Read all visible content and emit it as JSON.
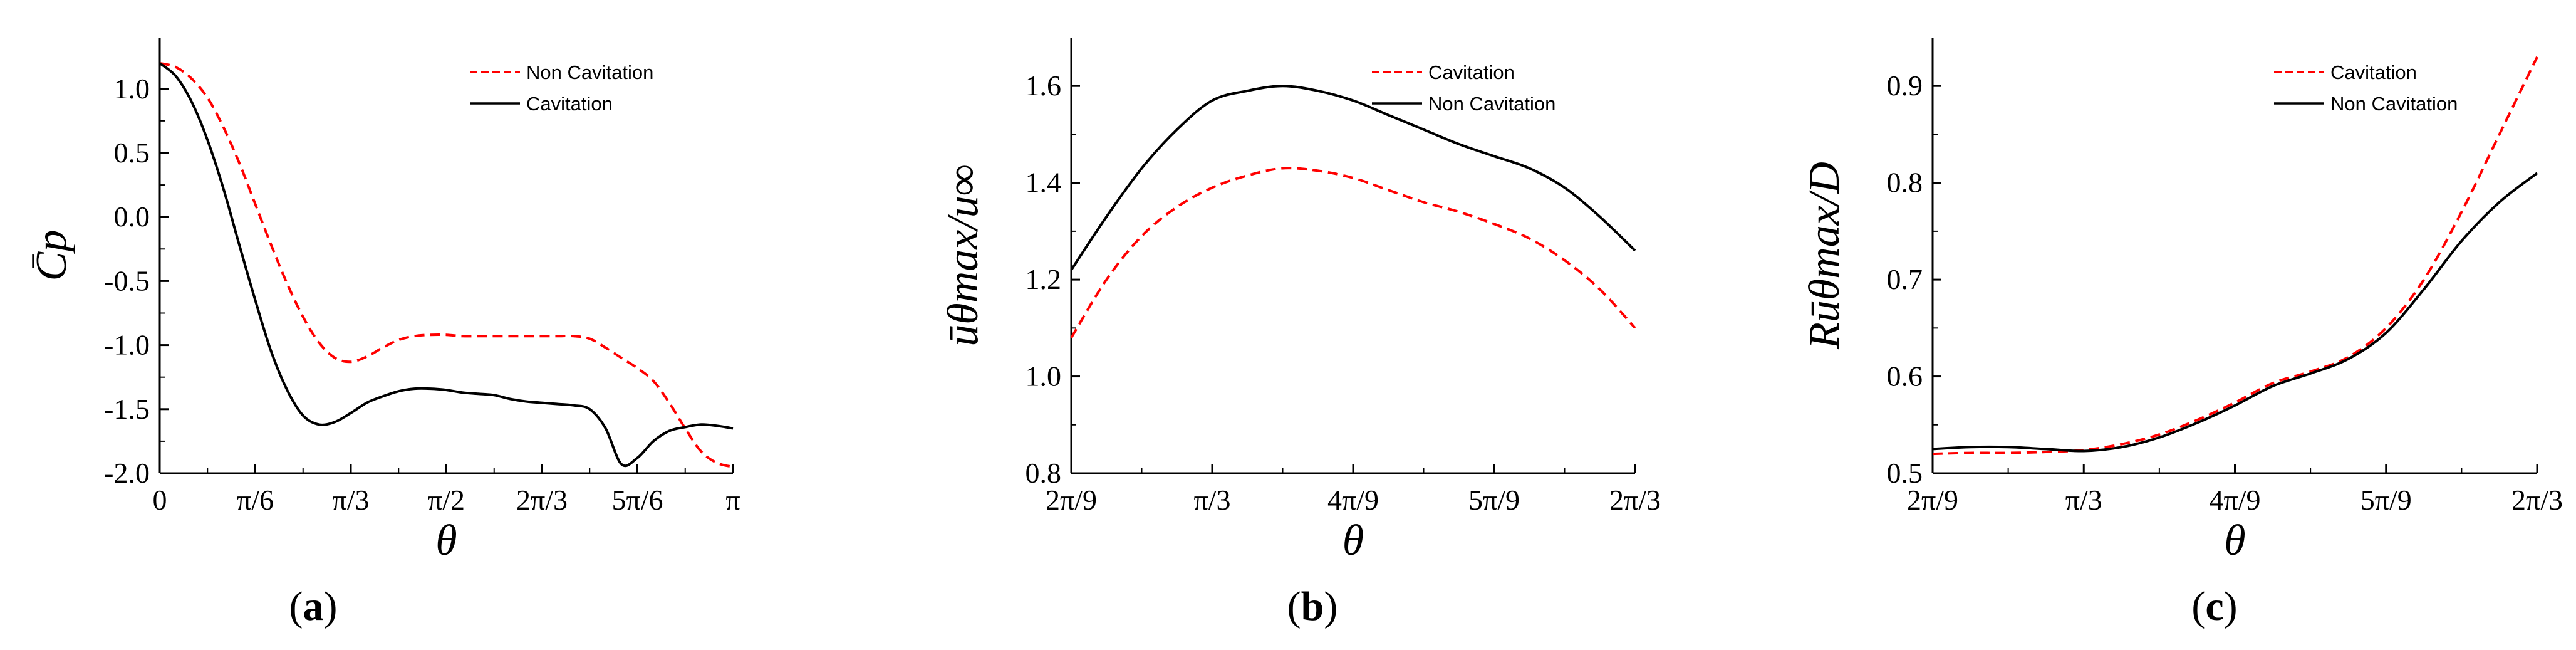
{
  "panels": [
    "a",
    "b",
    "c"
  ],
  "chart_data": [
    {
      "id": "a",
      "type": "line",
      "caption": "a",
      "xlabel": "θ",
      "ylabel": "C̄p",
      "xlim": [
        0,
        180
      ],
      "ylim": [
        -2.0,
        1.4
      ],
      "xticks": [
        0,
        30,
        60,
        90,
        120,
        150,
        180
      ],
      "xtick_labels": [
        "0",
        "π/6",
        "π/3",
        "π/2",
        "2π/3",
        "5π/6",
        "π"
      ],
      "yticks": [
        -2.0,
        -1.5,
        -1.0,
        -0.5,
        0.0,
        0.5,
        1.0
      ],
      "ytick_labels": [
        "-2.0",
        "-1.5",
        "-1.0",
        "-0.5",
        "0.0",
        "0.5",
        "1.0"
      ],
      "legend_position": "top-right",
      "series": [
        {
          "name": "Non Cavitation",
          "color": "#ff0000",
          "dash": true,
          "x": [
            0,
            5,
            10,
            15,
            20,
            25,
            30,
            35,
            40,
            45,
            50,
            55,
            60,
            65,
            70,
            75,
            80,
            85,
            90,
            95,
            100,
            105,
            110,
            115,
            120,
            125,
            130,
            135,
            140,
            145,
            150,
            155,
            160,
            165,
            170,
            175,
            180
          ],
          "y": [
            1.2,
            1.17,
            1.08,
            0.93,
            0.7,
            0.42,
            0.1,
            -0.22,
            -0.52,
            -0.78,
            -0.98,
            -1.1,
            -1.13,
            -1.09,
            -1.02,
            -0.96,
            -0.93,
            -0.92,
            -0.92,
            -0.93,
            -0.93,
            -0.93,
            -0.93,
            -0.93,
            -0.93,
            -0.93,
            -0.93,
            -0.95,
            -1.02,
            -1.1,
            -1.18,
            -1.28,
            -1.45,
            -1.65,
            -1.83,
            -1.92,
            -1.95
          ]
        },
        {
          "name": "Cavitation",
          "color": "#000000",
          "dash": false,
          "x": [
            0,
            5,
            10,
            15,
            20,
            25,
            30,
            35,
            40,
            45,
            50,
            55,
            60,
            65,
            70,
            75,
            80,
            85,
            90,
            95,
            100,
            105,
            110,
            115,
            120,
            125,
            130,
            135,
            140,
            145,
            150,
            155,
            160,
            165,
            170,
            175,
            180
          ],
          "y": [
            1.2,
            1.1,
            0.9,
            0.6,
            0.22,
            -0.22,
            -0.65,
            -1.05,
            -1.35,
            -1.55,
            -1.62,
            -1.6,
            -1.53,
            -1.45,
            -1.4,
            -1.36,
            -1.34,
            -1.34,
            -1.35,
            -1.37,
            -1.38,
            -1.39,
            -1.42,
            -1.44,
            -1.45,
            -1.46,
            -1.47,
            -1.5,
            -1.65,
            -1.93,
            -1.88,
            -1.75,
            -1.67,
            -1.64,
            -1.62,
            -1.63,
            -1.65
          ]
        }
      ]
    },
    {
      "id": "b",
      "type": "line",
      "caption": "b",
      "xlabel": "θ",
      "ylabel": "ūθmax/u∞",
      "xlim": [
        40,
        120
      ],
      "ylim": [
        0.8,
        1.7
      ],
      "xticks": [
        40,
        60,
        80,
        100,
        120
      ],
      "xtick_labels": [
        "2π/9",
        "π/3",
        "4π/9",
        "5π/9",
        "2π/3"
      ],
      "yticks": [
        0.8,
        1.0,
        1.2,
        1.4,
        1.6
      ],
      "ytick_labels": [
        "0.8",
        "1.0",
        "1.2",
        "1.4",
        "1.6"
      ],
      "legend_position": "top-right",
      "series": [
        {
          "name": "Cavitation",
          "color": "#ff0000",
          "dash": true,
          "x": [
            40,
            45,
            50,
            55,
            60,
            65,
            70,
            75,
            80,
            85,
            90,
            95,
            100,
            105,
            110,
            115,
            120
          ],
          "y": [
            1.08,
            1.2,
            1.29,
            1.35,
            1.39,
            1.415,
            1.43,
            1.425,
            1.41,
            1.385,
            1.36,
            1.34,
            1.315,
            1.285,
            1.24,
            1.18,
            1.1
          ]
        },
        {
          "name": "Non Cavitation",
          "color": "#000000",
          "dash": false,
          "x": [
            40,
            45,
            50,
            55,
            60,
            65,
            70,
            75,
            80,
            85,
            90,
            95,
            100,
            105,
            110,
            115,
            120
          ],
          "y": [
            1.22,
            1.33,
            1.43,
            1.51,
            1.57,
            1.59,
            1.6,
            1.59,
            1.57,
            1.54,
            1.51,
            1.48,
            1.455,
            1.43,
            1.39,
            1.33,
            1.26
          ]
        }
      ]
    },
    {
      "id": "c",
      "type": "line",
      "caption": "c",
      "xlabel": "θ",
      "ylabel": "Rūθmax/D",
      "xlim": [
        40,
        120
      ],
      "ylim": [
        0.5,
        0.95
      ],
      "xticks": [
        40,
        60,
        80,
        100,
        120
      ],
      "xtick_labels": [
        "2π/9",
        "π/3",
        "4π/9",
        "5π/9",
        "2π/3"
      ],
      "yticks": [
        0.5,
        0.6,
        0.7,
        0.8,
        0.9
      ],
      "ytick_labels": [
        "0.5",
        "0.6",
        "0.7",
        "0.8",
        "0.9"
      ],
      "legend_position": "top-right",
      "series": [
        {
          "name": "Cavitation",
          "color": "#ff0000",
          "dash": true,
          "x": [
            40,
            45,
            50,
            55,
            60,
            65,
            70,
            75,
            80,
            85,
            90,
            95,
            100,
            105,
            110,
            115,
            120
          ],
          "y": [
            0.52,
            0.521,
            0.521,
            0.522,
            0.524,
            0.53,
            0.54,
            0.555,
            0.573,
            0.593,
            0.605,
            0.62,
            0.65,
            0.7,
            0.77,
            0.85,
            0.93
          ]
        },
        {
          "name": "Non Cavitation",
          "color": "#000000",
          "dash": false,
          "x": [
            40,
            45,
            50,
            55,
            60,
            65,
            70,
            75,
            80,
            85,
            90,
            95,
            100,
            105,
            110,
            115,
            120
          ],
          "y": [
            0.525,
            0.527,
            0.527,
            0.525,
            0.523,
            0.527,
            0.537,
            0.552,
            0.57,
            0.59,
            0.603,
            0.618,
            0.645,
            0.69,
            0.74,
            0.78,
            0.81
          ]
        }
      ]
    }
  ]
}
